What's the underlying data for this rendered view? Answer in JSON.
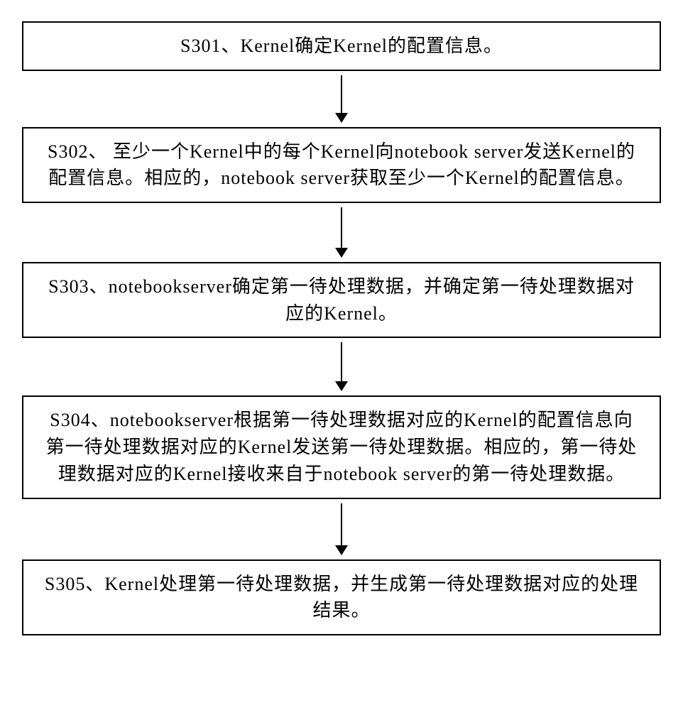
{
  "flow": {
    "box_border_color": "#000000",
    "box_border_width": 2,
    "box_bg": "#ffffff",
    "font_size": 26,
    "font_family": "SimSun",
    "arrow_color": "#000000",
    "arrow_line_width": 2,
    "arrow_head_w": 18,
    "arrow_head_h": 14,
    "steps": [
      {
        "text": "S301、Kernel确定Kernel的配置信息。",
        "arrow_len": 54
      },
      {
        "text": "S302、 至少一个Kernel中的每个Kernel向notebook server发送Kernel的配置信息。相应的，notebook server获取至少一个Kernel的配置信息。",
        "arrow_len": 58
      },
      {
        "text": "S303、notebookserver确定第一待处理数据，并确定第一待处理数据对应的Kernel。",
        "arrow_len": 56
      },
      {
        "text": "S304、notebookserver根据第一待处理数据对应的Kernel的配置信息向第一待处理数据对应的Kernel发送第一待处理数据。相应的，第一待处理数据对应的Kernel接收来自于notebook server的第一待处理数据。",
        "arrow_len": 60
      },
      {
        "text": "S305、Kernel处理第一待处理数据，并生成第一待处理数据对应的处理结果。",
        "arrow_len": 0
      }
    ]
  }
}
